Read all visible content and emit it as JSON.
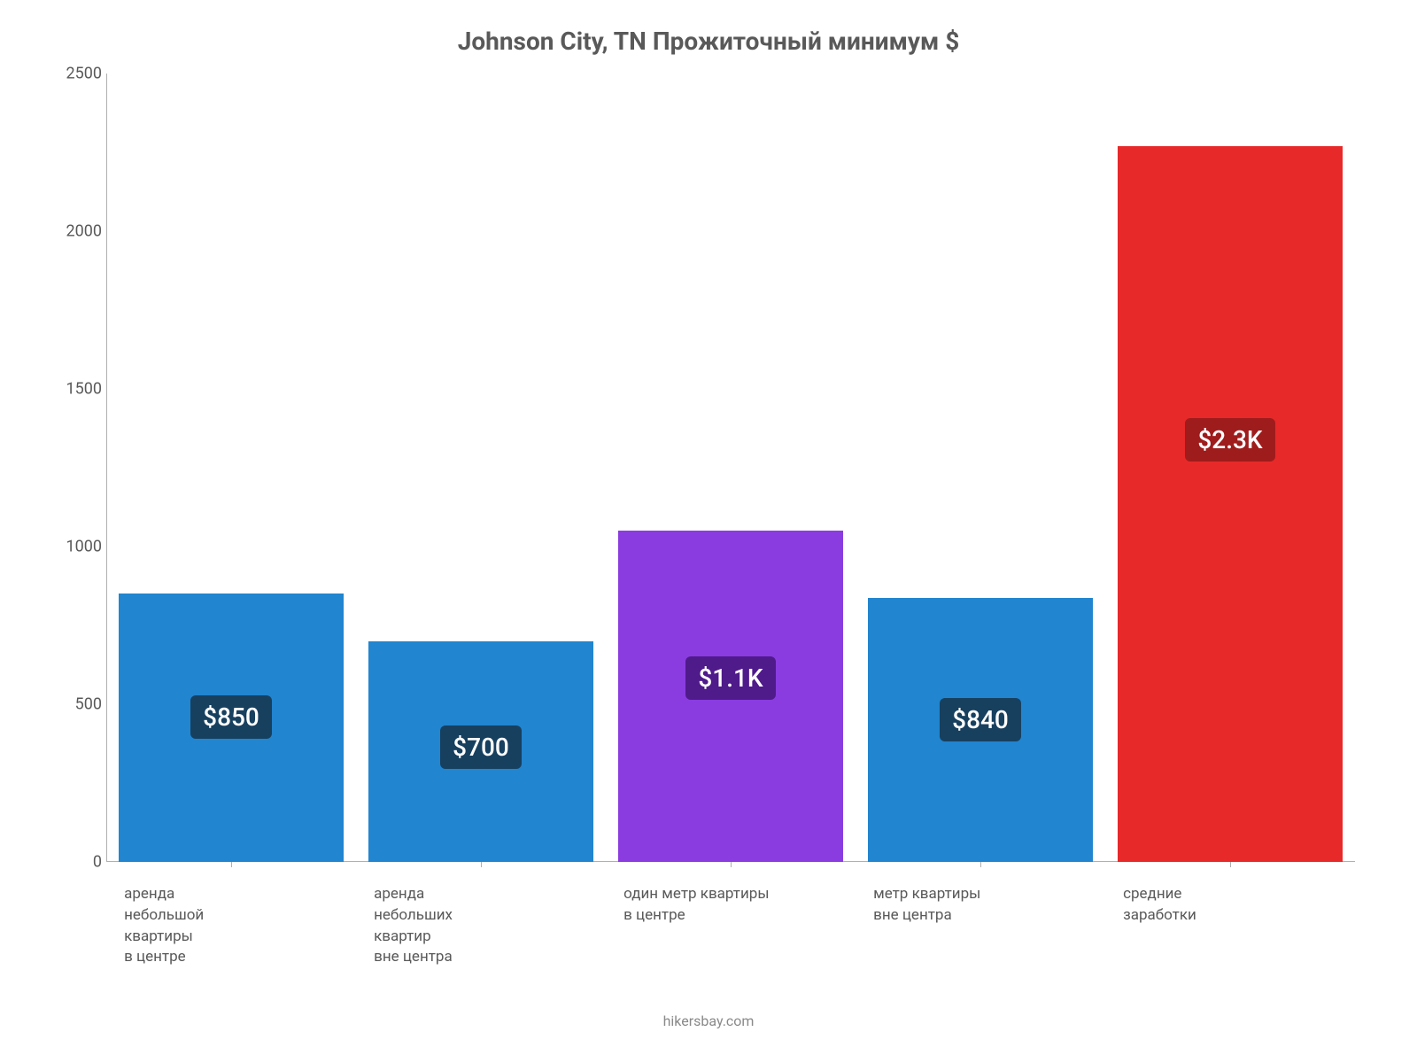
{
  "chart": {
    "type": "bar",
    "title": "Johnson City, TN Прожиточный минимум $",
    "title_fontsize": 28,
    "title_color": "#595959",
    "background_color": "#ffffff",
    "ylim": [
      0,
      2500
    ],
    "ytick_step": 500,
    "yticks": [
      0,
      500,
      1000,
      1500,
      2000,
      2500
    ],
    "axis_color": "#b0b0b0",
    "tick_color": "#595959",
    "tick_fontsize": 18,
    "bar_width_pct": 100,
    "bars": [
      {
        "category": "аренда\nнебольшой\nквартиры\nв центре",
        "value": 850,
        "display_label": "$850",
        "bar_color": "#2185d0",
        "label_bg": "#17405f",
        "label_text_color": "#ffffff"
      },
      {
        "category": "аренда\nнебольших\nквартир\nвне центра",
        "value": 700,
        "display_label": "$700",
        "bar_color": "#2185d0",
        "label_bg": "#17405f",
        "label_text_color": "#ffffff"
      },
      {
        "category": "один метр квартиры\nв центре",
        "value": 1050,
        "display_label": "$1.1K",
        "bar_color": "#8a3ce0",
        "label_bg": "#4f1a8a",
        "label_text_color": "#ffffff"
      },
      {
        "category": "метр квартиры\nвне центра",
        "value": 836,
        "display_label": "$840",
        "bar_color": "#2185d0",
        "label_bg": "#17405f",
        "label_text_color": "#ffffff"
      },
      {
        "category": "средние\nзаработки",
        "value": 2270,
        "display_label": "$2.3K",
        "bar_color": "#e82929",
        "label_bg": "#9e1c1c",
        "label_text_color": "#ffffff"
      }
    ],
    "x_label_fontsize": 17,
    "x_label_color": "#595959",
    "bar_label_fontsize": 28,
    "footer_text": "hikersbay.com",
    "footer_color": "#8a8a8a",
    "footer_fontsize": 16
  }
}
